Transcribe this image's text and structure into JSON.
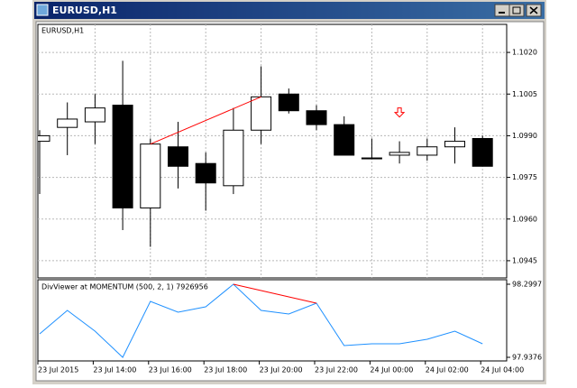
{
  "window": {
    "title": "EURUSD,H1"
  },
  "chart_data": [
    {
      "type": "candlestick",
      "title": "EURUSD,H1",
      "open": [
        1.0988,
        1.0993,
        1.0995,
        1.1001,
        1.0964,
        1.0986,
        1.098,
        1.0972,
        1.0992,
        1.1005,
        1.0999,
        1.0994,
        1.0982,
        1.0983,
        1.0983,
        1.0986,
        1.0989
      ],
      "high": [
        1.0992,
        1.1002,
        1.1005,
        1.1017,
        1.0989,
        1.0995,
        1.0984,
        1.1,
        1.1015,
        1.1007,
        1.1001,
        1.0997,
        1.0989,
        1.0988,
        1.0989,
        1.0993,
        1.099
      ],
      "low": [
        1.0969,
        1.0983,
        1.0987,
        1.0956,
        1.095,
        1.0971,
        1.0963,
        1.0969,
        1.0987,
        1.0998,
        1.0992,
        1.0983,
        1.0982,
        1.098,
        1.0981,
        1.098,
        1.0979
      ],
      "close": [
        1.099,
        1.0996,
        1.1,
        1.0964,
        1.0987,
        1.0979,
        1.0973,
        1.0992,
        1.1004,
        1.0999,
        1.0994,
        1.0983,
        1.0982,
        1.0984,
        1.0986,
        1.0988,
        1.0979
      ],
      "up_color": "#ffffff",
      "down_color": "#000000",
      "ylim": [
        1.09388,
        1.10301
      ],
      "yticks": [
        1.0945,
        {
          "value": 1.096,
          "label": "1.0960"
        },
        1.0975,
        {
          "value": 1.099,
          "label": "1.0990"
        },
        1.1005,
        {
          "value": 1.102,
          "label": "1.1020"
        }
      ],
      "grid": true,
      "trendline": {
        "color": "#ff0000",
        "points": [
          [
            4,
            1.0987
          ],
          [
            8,
            1.1004
          ]
        ]
      },
      "arrow": {
        "index": 13,
        "value": 1.1,
        "color": "#ff0000"
      }
    },
    {
      "type": "line",
      "title": "DivViewer at MOMENTUM (500, 2, 1) 7926956",
      "categories": [
        "23 Jul 2015",
        null,
        "23 Jul 14:00",
        null,
        "23 Jul 16:00",
        null,
        "23 Jul 18:00",
        null,
        "23 Jul 20:00",
        null,
        "23 Jul 22:00",
        null,
        "24 Jul 00:00",
        null,
        "24 Jul 02:00",
        null,
        "24 Jul 04:00"
      ],
      "values": [
        98.0538,
        98.1701,
        98.0672,
        97.9376,
        98.2148,
        98.1611,
        98.1879,
        98.2997,
        98.1701,
        98.1522,
        98.2058,
        97.9957,
        98.0047,
        98.0047,
        98.027,
        98.0672,
        98.0047
      ],
      "color": "#1e90ff",
      "ylim": [
        97.9376,
        98.2997
      ],
      "yticks": [
        97.9376,
        98.2997
      ],
      "trendline": {
        "color": "#ff0000",
        "points": [
          [
            7,
            98.2997
          ],
          [
            10,
            98.2058
          ]
        ]
      }
    }
  ]
}
